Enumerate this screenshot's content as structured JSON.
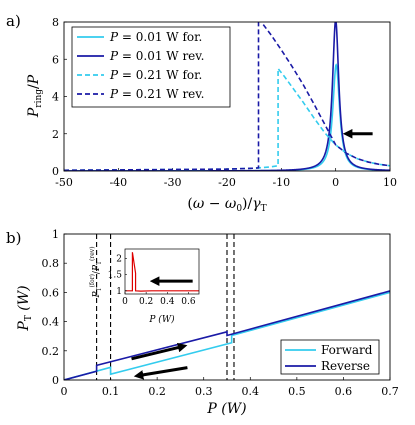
{
  "chart_data": [
    {
      "type": "line",
      "panel_label": "a)",
      "xlabel": "(ω − ω₀)/γT",
      "ylabel": "Pring/P",
      "xlim": [
        -50,
        10
      ],
      "ylim": [
        0,
        8
      ],
      "xticks": [
        "-50",
        "-40",
        "-30",
        "-20",
        "-10",
        "0",
        "10"
      ],
      "yticks": [
        "0",
        "2",
        "4",
        "6",
        "8"
      ],
      "legend_position": "top-left",
      "legend": [
        {
          "var": "P",
          "rest": " = 0.01 W for.",
          "color": "#33ccee",
          "dash": false
        },
        {
          "var": "P",
          "rest": " = 0.01 W rev.",
          "color": "#1a1aa6",
          "dash": false
        },
        {
          "var": "P",
          "rest": " = 0.21 W for.",
          "color": "#33ccee",
          "dash": true
        },
        {
          "var": "P",
          "rest": " = 0.21 W rev.",
          "color": "#1a1aa6",
          "dash": true
        }
      ],
      "series": [
        {
          "name": "P = 0.01 W for.",
          "color": "#33ccee",
          "dash": false,
          "kind": "lorentz",
          "peak": 5.7,
          "center": 0.1,
          "hwhm": 0.75
        },
        {
          "name": "P = 0.01 W rev.",
          "color": "#1a1aa6",
          "dash": false,
          "kind": "lorentz",
          "peak": 8.1,
          "center": 0.0,
          "hwhm": 0.7
        },
        {
          "name": "P = 0.21 W for.",
          "color": "#33ccee",
          "dash": true,
          "x": [
            -50,
            -20,
            -15,
            -12,
            -10.6,
            -10.6,
            -10.2,
            -9.5,
            -9.0,
            -8.0,
            -6.0,
            -4.0,
            -2.0,
            0.0,
            2.0,
            4.0,
            6.0,
            8.0,
            10.0
          ],
          "y": [
            0.04,
            0.1,
            0.15,
            0.22,
            0.28,
            5.5,
            5.35,
            5.1,
            4.9,
            4.5,
            3.7,
            2.85,
            2.05,
            1.4,
            0.95,
            0.66,
            0.48,
            0.36,
            0.28
          ]
        },
        {
          "name": "P = 0.21 W rev.",
          "color": "#1a1aa6",
          "dash": true,
          "x": [
            -50,
            -20,
            -15,
            -14.2,
            -14.2,
            -12.0,
            -10.0,
            -8.0,
            -6.0,
            -4.0,
            -2.0,
            0.0,
            2.0,
            4.0,
            6.0,
            8.0,
            10.0
          ],
          "y": [
            0.04,
            0.1,
            0.15,
            0.17,
            8.2,
            7.35,
            6.5,
            5.6,
            4.65,
            3.6,
            2.5,
            1.4,
            0.95,
            0.66,
            0.48,
            0.36,
            0.28
          ]
        }
      ],
      "arrows": [
        {
          "from": [
            6.8,
            2.0
          ],
          "to": [
            2.2,
            2.0
          ],
          "color": "#000000"
        }
      ]
    },
    {
      "type": "line",
      "panel_label": "b)",
      "xlabel": "P (W)",
      "ylabel": "PT (W)",
      "xlim": [
        0,
        0.7
      ],
      "ylim": [
        0,
        1
      ],
      "xticks": [
        "0",
        "0.1",
        "0.2",
        "0.3",
        "0.4",
        "0.5",
        "0.6",
        "0.7"
      ],
      "yticks": [
        "0",
        "0.2",
        "0.4",
        "0.6",
        "0.8",
        "1"
      ],
      "legend_position": "bottom-right",
      "legend": [
        {
          "label": "Forward",
          "color": "#33ccee"
        },
        {
          "label": "Reverse",
          "color": "#1a1aa6"
        }
      ],
      "series": [
        {
          "name": "Forward",
          "color": "#33ccee",
          "x": [
            0,
            0.1,
            0.1,
            0.36,
            0.36,
            0.7
          ],
          "y": [
            0,
            0.087,
            0.04,
            0.255,
            0.305,
            0.6
          ]
        },
        {
          "name": "Reverse",
          "color": "#1a1aa6",
          "x": [
            0,
            0.07,
            0.07,
            0.35,
            0.35,
            0.7
          ],
          "y": [
            0,
            0.06,
            0.1,
            0.33,
            0.305,
            0.61
          ]
        }
      ],
      "vlines": [
        0.07,
        0.1,
        0.35,
        0.365
      ],
      "arrows": [
        {
          "from": [
            0.145,
            0.145
          ],
          "to": [
            0.255,
            0.23
          ],
          "color": "#000000"
        },
        {
          "from": [
            0.265,
            0.085
          ],
          "to": [
            0.16,
            0.03
          ],
          "color": "#000000"
        }
      ],
      "inset": {
        "ylabel": "PT(for)/PT(rev)",
        "xlabel": "P (W)",
        "xlim": [
          0,
          0.7
        ],
        "ylim": [
          0.9,
          2.3
        ],
        "xticks": [
          "0",
          "0.2",
          "0.4",
          "0.6"
        ],
        "yticks": [
          "1",
          "1.5",
          "2"
        ],
        "series": [
          {
            "name": "ratio",
            "color": "#dd0000",
            "x": [
              0,
              0.06,
              0.07,
              0.07,
              0.1,
              0.1,
              0.15,
              0.25,
              0.4,
              0.7
            ],
            "y": [
              1.0,
              1.0,
              1.0,
              2.2,
              1.55,
              1.0,
              0.99,
              1.0,
              1.0,
              1.0
            ]
          }
        ],
        "arrows": [
          {
            "from": [
              0.64,
              1.3
            ],
            "to": [
              0.28,
              1.3
            ],
            "color": "#000000"
          }
        ]
      }
    }
  ]
}
